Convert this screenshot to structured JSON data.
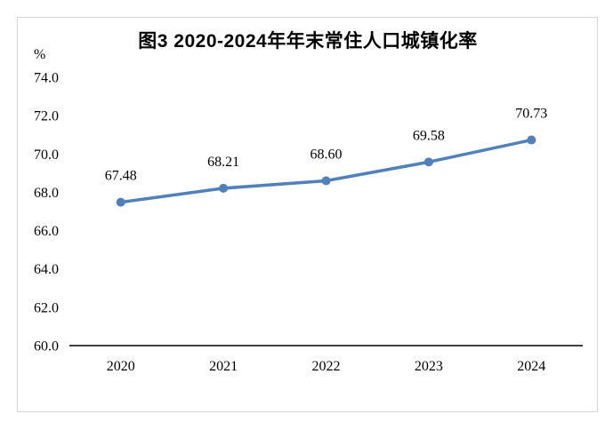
{
  "frame": {
    "border_color": "#d6d6d6",
    "background": "#ffffff"
  },
  "chart_data": {
    "type": "line",
    "title": "图3 2020-2024年年末常住人口城镇化率",
    "ylabel": "%",
    "xlabel": "",
    "categories": [
      "2020",
      "2021",
      "2022",
      "2023",
      "2024"
    ],
    "values": [
      67.48,
      68.21,
      68.6,
      69.58,
      70.73
    ],
    "data_labels": [
      "67.48",
      "68.21",
      "68.60",
      "69.58",
      "70.73"
    ],
    "y_ticks": [
      "74.0",
      "72.0",
      "70.0",
      "68.0",
      "66.0",
      "64.0",
      "62.0",
      "60.0"
    ],
    "ylim": [
      60.0,
      74.0
    ],
    "y_tick_step": 2.0,
    "grid": false,
    "legend": "none",
    "line_color": "#4F81BD",
    "marker": "circle",
    "axis_color": "#000000",
    "text_color": "#000000"
  }
}
